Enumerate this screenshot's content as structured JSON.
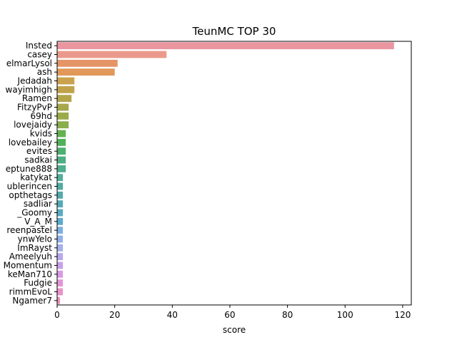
{
  "chart_data": {
    "type": "bar",
    "orientation": "horizontal",
    "title": "TeunMC TOP 30",
    "xlabel": "score",
    "ylabel": "",
    "xlim": [
      0,
      123
    ],
    "xticks": [
      0,
      20,
      40,
      60,
      80,
      100,
      120
    ],
    "grid": false,
    "legend": "none",
    "categories": [
      "Insted",
      "casey",
      "elmarLysol",
      "ash",
      "Jedadah",
      "wayimhigh",
      "Ramen",
      "FitzyPvP",
      "69hd",
      "lovejaidy",
      "kvids",
      "lovebailey",
      "evites",
      "sadkai",
      "eptune888",
      "katykat",
      "ublerincen",
      "opthetags",
      "sadliar",
      "_Goomy",
      "V_A_M",
      "reenpastel",
      "ynwYelo",
      "ImRayst",
      "Ameelyuh",
      "Momentum",
      "keMan710",
      "Fudgie",
      "rimmEvoL",
      "Ngamer7"
    ],
    "values": [
      117,
      38,
      21,
      20,
      6,
      6,
      5,
      4,
      4,
      4,
      3,
      3,
      3,
      3,
      3,
      2,
      2,
      2,
      2,
      2,
      2,
      2,
      2,
      2,
      2,
      2,
      2,
      2,
      2,
      1
    ],
    "colors": [
      "#ea96a0",
      "#ea9a8c",
      "#e59466",
      "#e19859",
      "#cba24d",
      "#c0a24b",
      "#b3a54a",
      "#a6a84a",
      "#9aab4a",
      "#8aae4b",
      "#64b151",
      "#4fb15a",
      "#4cb06f",
      "#4daf81",
      "#4eae8d",
      "#50ae99",
      "#51aca2",
      "#53abab",
      "#55abb5",
      "#58abc2",
      "#5babce",
      "#7dafe4",
      "#92b0ea",
      "#a5b0ec",
      "#b6a9ec",
      "#c7a0ea",
      "#d89ae3",
      "#e595d8",
      "#ea92c9",
      "#ec91ba"
    ]
  }
}
